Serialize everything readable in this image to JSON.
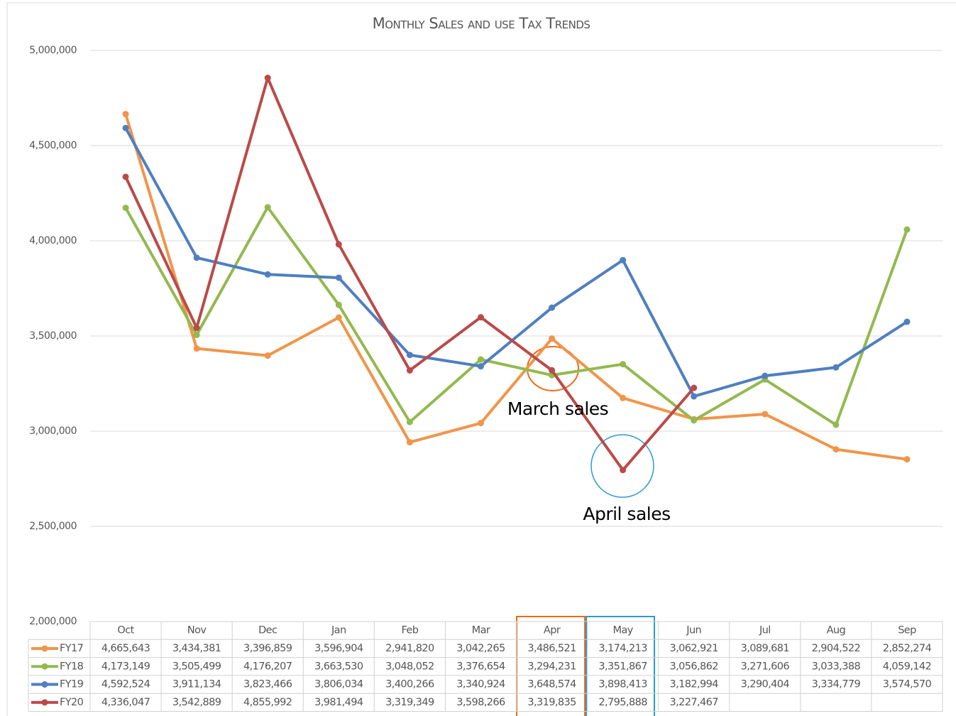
{
  "chart_data": {
    "type": "line",
    "title": "Monthly Sales and use Tax Trends",
    "categories": [
      "Oct",
      "Nov",
      "Dec",
      "Jan",
      "Feb",
      "Mar",
      "Apr",
      "May",
      "Jun",
      "Jul",
      "Aug",
      "Sep"
    ],
    "ylim": [
      2000000,
      5000000
    ],
    "yticks": [
      {
        "value": 2000000,
        "label": "2,000,000"
      },
      {
        "value": 2500000,
        "label": "2,500,000"
      },
      {
        "value": 3000000,
        "label": "3,000,000"
      },
      {
        "value": 3500000,
        "label": "3,500,000"
      },
      {
        "value": 4000000,
        "label": "4,000,000"
      },
      {
        "value": 4500000,
        "label": "4,500,000"
      },
      {
        "value": 5000000,
        "label": "5,000,000"
      }
    ],
    "grid": true,
    "series": [
      {
        "name": "FY17",
        "color": "#f0954a",
        "values": [
          4665643,
          3434381,
          3396859,
          3596904,
          2941820,
          3042265,
          3486521,
          3174213,
          3062921,
          3089681,
          2904522,
          2852274
        ],
        "value_labels": [
          "4,665,643",
          "3,434,381",
          "3,396,859",
          "3,596,904",
          "2,941,820",
          "3,042,265",
          "3,486,521",
          "3,174,213",
          "3,062,921",
          "3,089,681",
          "2,904,522",
          "2,852,274"
        ]
      },
      {
        "name": "FY18",
        "color": "#93b94f",
        "values": [
          4173149,
          3505499,
          4176207,
          3663530,
          3048052,
          3376654,
          3294231,
          3351867,
          3056862,
          3271606,
          3033388,
          4059142
        ],
        "value_labels": [
          "4,173,149",
          "3,505,499",
          "4,176,207",
          "3,663,530",
          "3,048,052",
          "3,376,654",
          "3,294,231",
          "3,351,867",
          "3,056,862",
          "3,271,606",
          "3,033,388",
          "4,059,142"
        ]
      },
      {
        "name": "FY19",
        "color": "#4f7fbf",
        "values": [
          4592524,
          3911134,
          3823466,
          3806034,
          3400266,
          3340924,
          3648574,
          3898413,
          3182994,
          3290404,
          3334779,
          3574570
        ],
        "value_labels": [
          "4,592,524",
          "3,911,134",
          "3,823,466",
          "3,806,034",
          "3,400,266",
          "3,340,924",
          "3,648,574",
          "3,898,413",
          "3,182,994",
          "3,290,404",
          "3,334,779",
          "3,574,570"
        ]
      },
      {
        "name": "FY20",
        "color": "#bb4a4a",
        "values": [
          4336047,
          3542889,
          4855992,
          3981494,
          3319349,
          3598266,
          3319835,
          2795888,
          3227467,
          null,
          null,
          null
        ],
        "value_labels": [
          "4,336,047",
          "3,542,889",
          "4,855,992",
          "3,981,494",
          "3,319,349",
          "3,598,266",
          "3,319,835",
          "2,795,888",
          "3,227,467",
          null,
          null,
          null
        ]
      }
    ],
    "annotations": [
      {
        "text": "March sales"
      },
      {
        "text": "April sales"
      }
    ]
  }
}
